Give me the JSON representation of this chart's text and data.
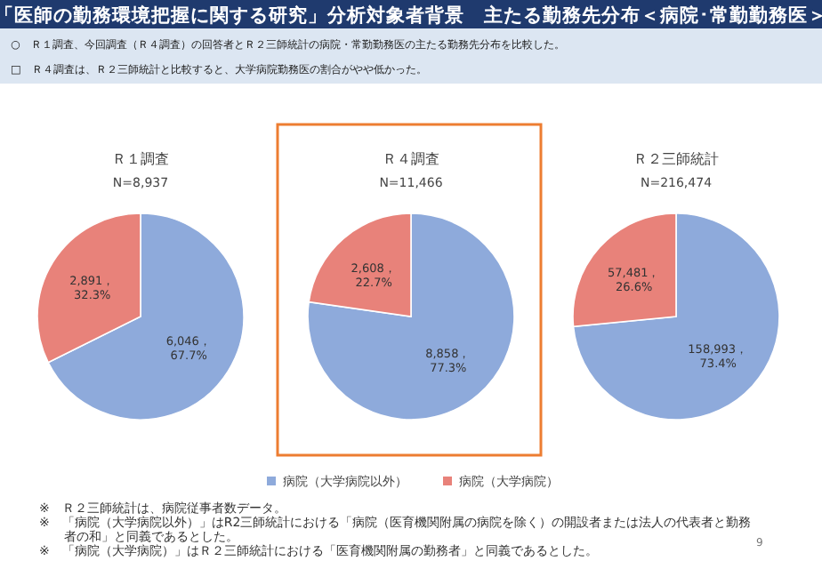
{
  "chart_data": [
    {
      "type": "other",
      "title": "「医師の勤務環境把握に関する研究」分析対象者背景　主たる勤務先分布＜病院･常勤勤務医＞",
      "annotations": [
        "○　Ｒ１調査、今回調査（Ｒ４調査）の回答者とＲ２三師統計の病院・常勤勤務医の主たる勤務先分布を比較した。",
        "□　Ｒ４調査は、Ｒ２三師統計と比較すると、大学病院勤務医の割合がやや低かった。",
        "※　Ｒ２三師統計は、病院従事者数データ。",
        "※　「病院（大学病院以外）」はR2三師統計における「病院（医育機関附属の病院を除く）の開設者または法人の代表者と勤務者の和」と同義であるとした。",
        "※　「病院（大学病院）」はＲ２三師統計における「医育機関附属の勤務者」と同義であるとした。",
        "9"
      ]
    },
    {
      "type": "pie",
      "title": "Ｒ１調査",
      "subtitle": "N=8,937",
      "categories": [
        "病院（大学病院以外）",
        "病院（大学病院）"
      ],
      "values": [
        6046,
        2891
      ],
      "colors": [
        "#8eaadb",
        "#e8827a"
      ],
      "value_labels": [
        "6,046，67.7%",
        "2,891，32.3%"
      ],
      "legend": "bottom"
    },
    {
      "type": "pie",
      "title": "Ｒ４調査",
      "subtitle": "N=11,466",
      "values": [
        8858,
        2608
      ],
      "colors": [
        "#8eaadb",
        "#e8827a"
      ],
      "value_labels": [
        "8,858，77.3%",
        "2,608，22.7%"
      ]
    },
    {
      "type": "pie",
      "title": "Ｒ２三師統計",
      "subtitle": "N=216,474",
      "values": [
        158993,
        57481
      ],
      "colors": [
        "#8eaadb",
        "#e8827a"
      ],
      "value_labels": [
        "158,993，73.4%",
        "57,481，26.6%"
      ]
    }
  ]
}
